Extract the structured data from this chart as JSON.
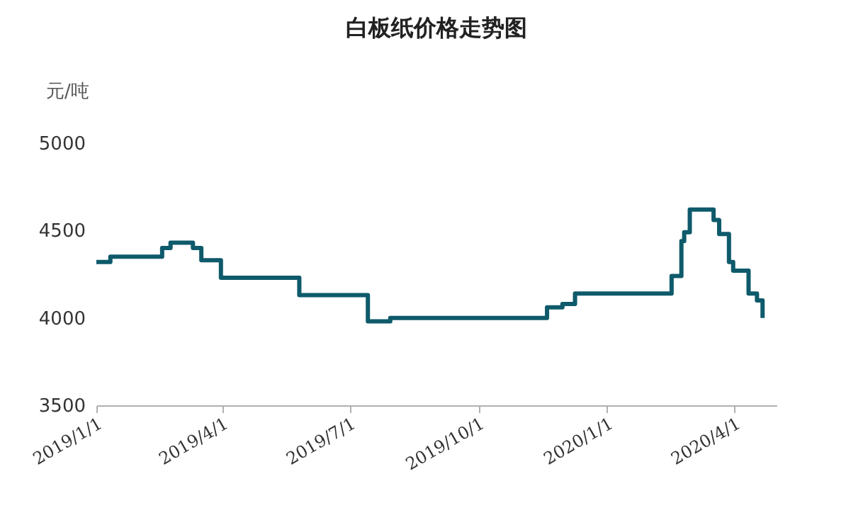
{
  "chart_data": {
    "type": "step",
    "title": "白板纸价格走势图",
    "ylabel": "元/吨",
    "x": [
      "2019-01-01",
      "2019-01-11",
      "2019-02-17",
      "2019-02-23",
      "2019-03-11",
      "2019-03-17",
      "2019-03-31",
      "2019-05-26",
      "2019-07-14",
      "2019-07-30",
      "2019-11-19",
      "2019-11-30",
      "2019-12-09",
      "2020-02-16",
      "2020-02-23",
      "2020-02-25",
      "2020-02-29",
      "2020-03-17",
      "2020-03-21",
      "2020-03-28",
      "2020-03-31",
      "2020-04-11",
      "2020-04-17",
      "2020-04-21"
    ],
    "series": [
      {
        "color": "#0e5a6b",
        "values": [
          4320,
          4350,
          4400,
          4430,
          4400,
          4330,
          4230,
          4130,
          3980,
          4000,
          4060,
          4080,
          4140,
          4240,
          4440,
          4490,
          4620,
          4560,
          4480,
          4320,
          4270,
          4140,
          4100,
          4000
        ]
      }
    ],
    "xlim": [
      "2019-01-01",
      "2020-05-01"
    ],
    "xticks": [
      {
        "value": "2019-01-01",
        "label": "2019/1/1"
      },
      {
        "value": "2019-04-01",
        "label": "2019/4/1"
      },
      {
        "value": "2019-07-01",
        "label": "2019/7/1"
      },
      {
        "value": "2019-10-01",
        "label": "2019/10/1"
      },
      {
        "value": "2020-01-01",
        "label": "2020/1/1"
      },
      {
        "value": "2020-04-01",
        "label": "2020/4/1"
      }
    ],
    "ylim": [
      3500,
      5000
    ],
    "yticks": [
      3500,
      4000,
      4500,
      5000
    ],
    "grid": false,
    "legend": false
  }
}
